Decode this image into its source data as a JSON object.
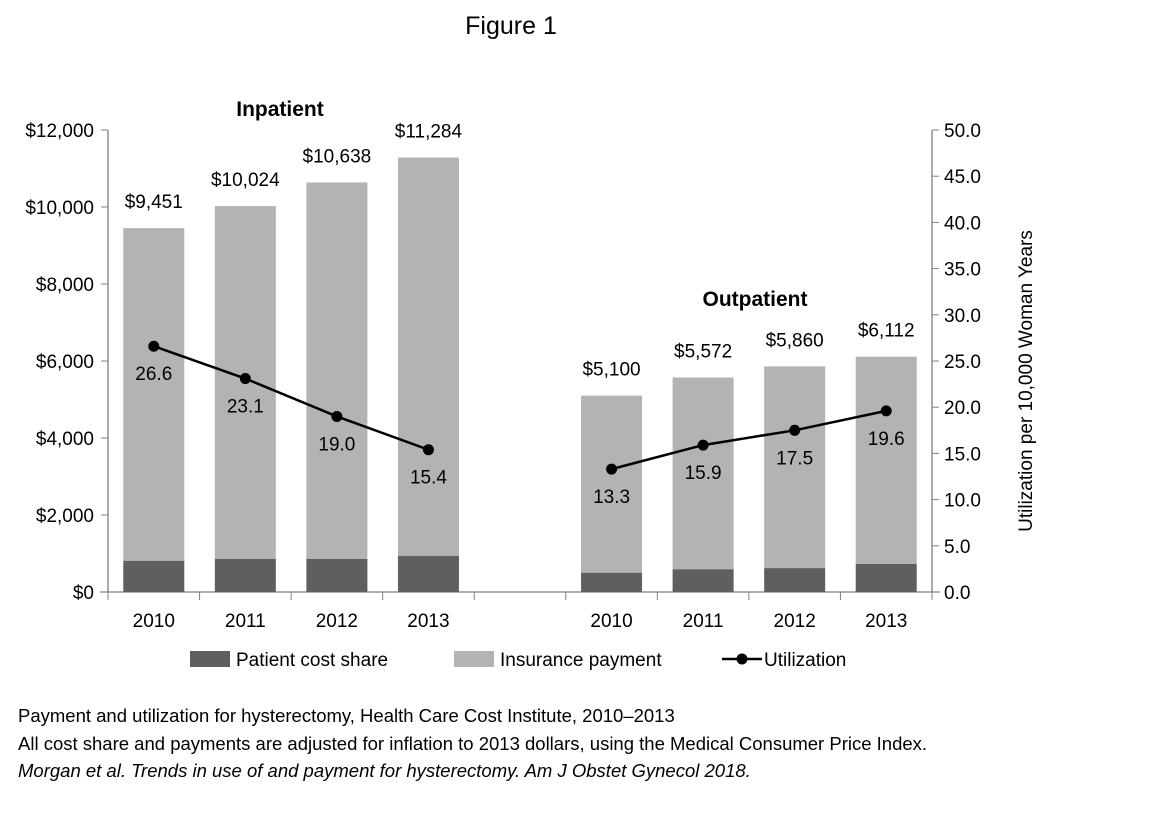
{
  "figure_title": "Figure 1",
  "colors": {
    "patient_cost_share": "#5f5f5f",
    "insurance_payment": "#b3b3b3",
    "utilization": "#000000",
    "axis": "#808080"
  },
  "chart_data": {
    "type": "bar",
    "stacked": true,
    "groups": [
      {
        "name": "Inpatient",
        "categories": [
          "2010",
          "2011",
          "2012",
          "2013"
        ],
        "totals": [
          9451,
          10024,
          10638,
          11284
        ],
        "total_labels": [
          "$9,451",
          "$10,024",
          "$10,638",
          "$11,284"
        ],
        "patient_cost_share": [
          810,
          860,
          860,
          940
        ],
        "utilization": [
          26.6,
          23.1,
          19.0,
          15.4
        ],
        "utilization_labels": [
          "26.6",
          "23.1",
          "19.0",
          "15.4"
        ]
      },
      {
        "name": "Outpatient",
        "categories": [
          "2010",
          "2011",
          "2012",
          "2013"
        ],
        "totals": [
          5100,
          5572,
          5860,
          6112
        ],
        "total_labels": [
          "$5,100",
          "$5,572",
          "$5,860",
          "$6,112"
        ],
        "patient_cost_share": [
          500,
          590,
          620,
          730
        ],
        "utilization": [
          13.3,
          15.9,
          17.5,
          19.6
        ],
        "utilization_labels": [
          "13.3",
          "15.9",
          "17.5",
          "19.6"
        ]
      }
    ],
    "series": [
      {
        "name": "Patient cost share",
        "type": "bar"
      },
      {
        "name": "Insurance payment",
        "type": "bar"
      },
      {
        "name": "Utilization",
        "type": "line",
        "axis": "right"
      }
    ],
    "left_axis": {
      "ylim": [
        0,
        12000
      ],
      "ticks": [
        "$0",
        "$2,000",
        "$4,000",
        "$6,000",
        "$8,000",
        "$10,000",
        "$12,000"
      ]
    },
    "right_axis": {
      "ylim": [
        0,
        50
      ],
      "label": "Utilization per 10,000 Woman Years",
      "ticks": [
        "0.0",
        "5.0",
        "10.0",
        "15.0",
        "20.0",
        "25.0",
        "30.0",
        "35.0",
        "40.0",
        "45.0",
        "50.0"
      ]
    },
    "grid": false,
    "legend": "bottom"
  },
  "captions": [
    "Payment and utilization for hysterectomy, Health Care Cost Institute, 2010–2013",
    "All cost share and payments are adjusted for inflation to 2013 dollars, using the Medical Consumer Price Index.",
    "Morgan et al. Trends in use of and payment for hysterectomy. Am J Obstet Gynecol 2018."
  ]
}
